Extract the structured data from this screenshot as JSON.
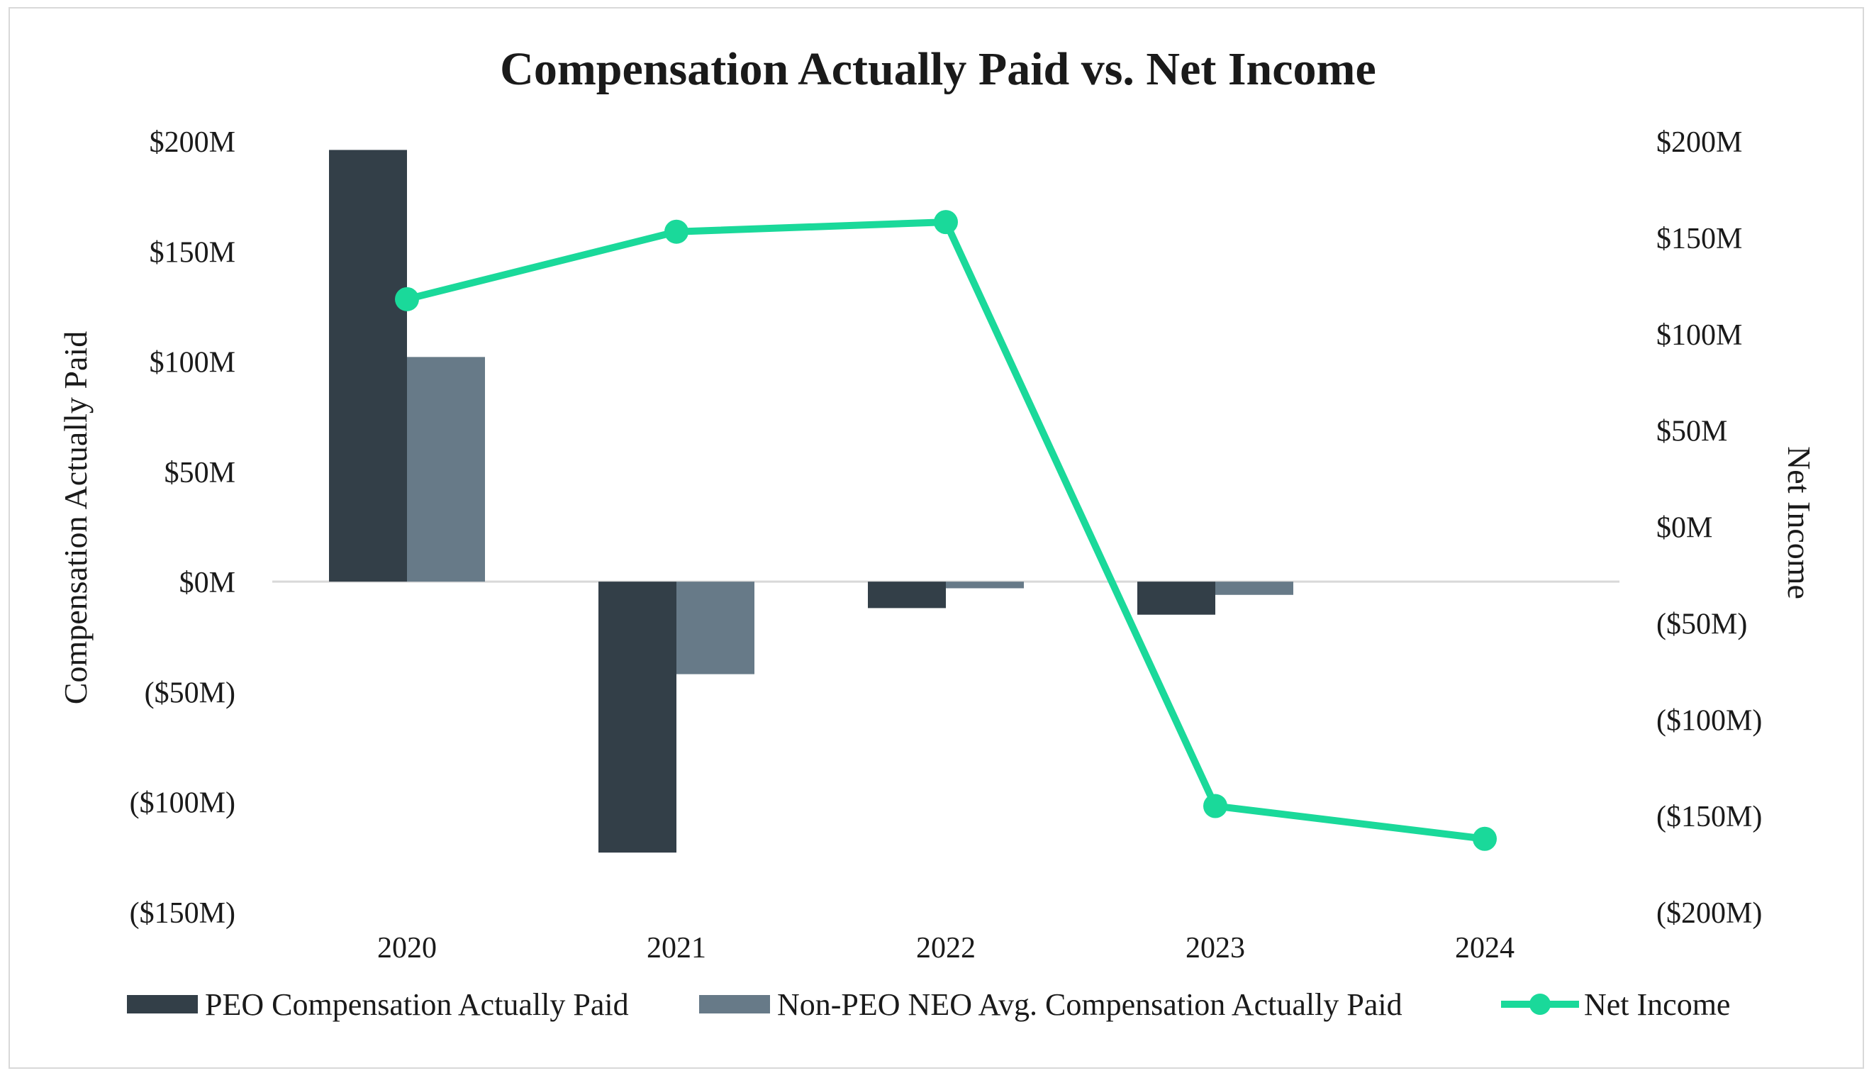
{
  "chart_data": {
    "type": "bar",
    "title": "Compensation Actually Paid vs. Net Income",
    "categories": [
      "2020",
      "2021",
      "2022",
      "2023",
      "2024"
    ],
    "series": [
      {
        "name": "PEO Compensation Actually Paid",
        "kind": "bar",
        "axis": "left",
        "color": "#333f48",
        "values": [
          196,
          -123,
          -12,
          -15,
          0
        ]
      },
      {
        "name": "Non-PEO NEO Avg. Compensation Actually Paid",
        "kind": "bar",
        "axis": "left",
        "color": "#677a88",
        "values": [
          102,
          -42,
          -3,
          -6,
          0
        ]
      },
      {
        "name": "Net Income",
        "kind": "line",
        "axis": "right",
        "color": "#1ad99a",
        "values": [
          118,
          153,
          158,
          -145,
          -162
        ]
      }
    ],
    "ylabel": "Compensation Actually Paid",
    "y2label": "Net Income",
    "ylim": [
      -150,
      200
    ],
    "y2lim": [
      -200,
      200
    ],
    "yticks": [
      "$200M",
      "$150M",
      "$100M",
      "$50M",
      "$0M",
      "($50M)",
      "($100M)",
      "($150M)"
    ],
    "y2ticks": [
      "$200M",
      "$150M",
      "$100M",
      "$50M",
      "$0M",
      "($50M)",
      "($100M)",
      "($150M)",
      "($200M)"
    ],
    "legend_position": "bottom"
  }
}
